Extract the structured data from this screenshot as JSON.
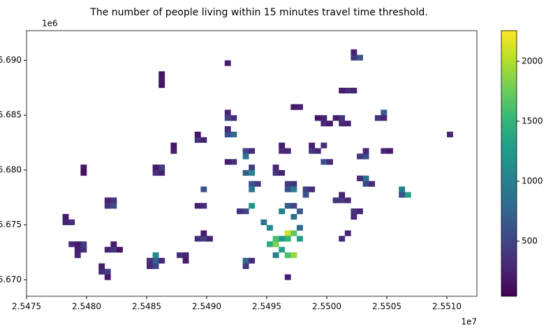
{
  "chart_data": {
    "type": "raster",
    "title": "The number of people living within 15 minutes travel time threshold.",
    "x_offset_label": "1e7",
    "y_offset_label": "1e6",
    "xlim": [
      25475000,
      25512500
    ],
    "ylim": [
      6668500,
      6692700
    ],
    "xticks": [
      {
        "value": 25475000,
        "label": "2.5475"
      },
      {
        "value": 25480000,
        "label": "2.5480"
      },
      {
        "value": 25485000,
        "label": "2.5485"
      },
      {
        "value": 25490000,
        "label": "2.5490"
      },
      {
        "value": 25495000,
        "label": "2.5495"
      },
      {
        "value": 25500000,
        "label": "2.5500"
      },
      {
        "value": 25505000,
        "label": "2.5505"
      },
      {
        "value": 25510000,
        "label": "2.5510"
      }
    ],
    "yticks": [
      {
        "value": 6670000,
        "label": "6.670"
      },
      {
        "value": 6675000,
        "label": "6.675"
      },
      {
        "value": 6680000,
        "label": "6.680"
      },
      {
        "value": 6685000,
        "label": "6.685"
      },
      {
        "value": 6690000,
        "label": "6.690"
      }
    ],
    "clim": [
      40,
      2256
    ],
    "cticks": [
      500,
      1000,
      1500,
      2000
    ],
    "colormap": "viridis",
    "cells": [
      [
        25478000,
        6675000,
        250
      ],
      [
        25478500,
        6675000,
        300
      ],
      [
        25478000,
        6675500,
        200
      ],
      [
        25479000,
        6672500,
        220
      ],
      [
        25479500,
        6672500,
        350
      ],
      [
        25479000,
        6673000,
        180
      ],
      [
        25478500,
        6673000,
        300
      ],
      [
        25479500,
        6673000,
        420
      ],
      [
        25479000,
        6672000,
        260
      ],
      [
        25481000,
        6670500,
        300
      ],
      [
        25481500,
        6670500,
        450
      ],
      [
        25481000,
        6671000,
        220
      ],
      [
        25481500,
        6670000,
        180
      ],
      [
        25481500,
        6672500,
        250
      ],
      [
        25482000,
        6672500,
        380
      ],
      [
        25482000,
        6673000,
        210
      ],
      [
        25482500,
        6672500,
        160
      ],
      [
        25479500,
        6679500,
        150
      ],
      [
        25479500,
        6680000,
        180
      ],
      [
        25481500,
        6676500,
        320
      ],
      [
        25482000,
        6676500,
        560
      ],
      [
        25481500,
        6677000,
        250
      ],
      [
        25482000,
        6677000,
        400
      ],
      [
        25486000,
        6688000,
        200
      ],
      [
        25486000,
        6687500,
        150
      ],
      [
        25486000,
        6688500,
        170
      ],
      [
        25485500,
        6679500,
        350
      ],
      [
        25486000,
        6679500,
        250
      ],
      [
        25485500,
        6680000,
        200
      ],
      [
        25486000,
        6680000,
        420
      ],
      [
        25485500,
        6671500,
        700
      ],
      [
        25485500,
        6672000,
        1100
      ],
      [
        25486000,
        6671500,
        300
      ],
      [
        25485000,
        6671500,
        350
      ],
      [
        25485000,
        6671000,
        280
      ],
      [
        25485500,
        6671000,
        500
      ],
      [
        25488000,
        6672000,
        260
      ],
      [
        25487500,
        6672000,
        330
      ],
      [
        25488000,
        6671500,
        200
      ],
      [
        25487000,
        6681500,
        230
      ],
      [
        25487000,
        6682000,
        190
      ],
      [
        25489000,
        6682500,
        350
      ],
      [
        25489500,
        6682500,
        260
      ],
      [
        25489000,
        6683000,
        180
      ],
      [
        25489500,
        6678000,
        600
      ],
      [
        25489000,
        6676500,
        240
      ],
      [
        25489500,
        6676500,
        320
      ],
      [
        25489000,
        6673500,
        300
      ],
      [
        25489500,
        6673500,
        460
      ],
      [
        25490000,
        6673500,
        250
      ],
      [
        25489500,
        6674000,
        200
      ],
      [
        25491500,
        6689500,
        210
      ],
      [
        25491500,
        6684500,
        480
      ],
      [
        25492000,
        6684500,
        330
      ],
      [
        25491500,
        6685000,
        260
      ],
      [
        25491500,
        6683000,
        560
      ],
      [
        25492000,
        6683000,
        780
      ],
      [
        25491500,
        6683500,
        300
      ],
      [
        25492000,
        6680500,
        350
      ],
      [
        25491500,
        6680500,
        220
      ],
      [
        25493000,
        6681500,
        520
      ],
      [
        25493500,
        6681500,
        300
      ],
      [
        25493000,
        6681000,
        900
      ],
      [
        25493000,
        6679500,
        700
      ],
      [
        25493500,
        6679500,
        1050
      ],
      [
        25493500,
        6680000,
        480
      ],
      [
        25493500,
        6678500,
        600
      ],
      [
        25494000,
        6678500,
        420
      ],
      [
        25493500,
        6678000,
        880
      ],
      [
        25493000,
        6676000,
        500
      ],
      [
        25493500,
        6676500,
        1200
      ],
      [
        25492500,
        6676000,
        350
      ],
      [
        25493000,
        6671500,
        800
      ],
      [
        25493000,
        6671000,
        400
      ],
      [
        25493500,
        6671500,
        300
      ],
      [
        25495500,
        6679500,
        380
      ],
      [
        25496000,
        6679500,
        250
      ],
      [
        25495500,
        6680000,
        300
      ],
      [
        25496000,
        6681500,
        320
      ],
      [
        25496500,
        6681500,
        260
      ],
      [
        25496000,
        6682000,
        210
      ],
      [
        25496500,
        6678500,
        420
      ],
      [
        25497000,
        6678500,
        350
      ],
      [
        25496500,
        6678000,
        600
      ],
      [
        25497000,
        6678000,
        950
      ],
      [
        25497500,
        6685500,
        230
      ],
      [
        25497000,
        6685500,
        170
      ],
      [
        25499500,
        6684000,
        300
      ],
      [
        25500000,
        6684000,
        220
      ],
      [
        25499500,
        6684500,
        260
      ],
      [
        25499000,
        6684500,
        180
      ],
      [
        25498500,
        6681500,
        380
      ],
      [
        25499000,
        6681500,
        290
      ],
      [
        25498500,
        6682000,
        240
      ],
      [
        25499500,
        6682000,
        330
      ],
      [
        25501000,
        6684000,
        280
      ],
      [
        25501000,
        6684500,
        350
      ],
      [
        25500500,
        6684500,
        220
      ],
      [
        25501500,
        6684000,
        250
      ],
      [
        25501500,
        6687000,
        320
      ],
      [
        25502000,
        6687000,
        260
      ],
      [
        25501000,
        6687000,
        210
      ],
      [
        25502000,
        6690000,
        400
      ],
      [
        25502500,
        6690000,
        600
      ],
      [
        25502000,
        6690500,
        250
      ],
      [
        25504500,
        6685000,
        700
      ],
      [
        25504000,
        6684500,
        350
      ],
      [
        25504500,
        6684500,
        280
      ],
      [
        25503000,
        6681000,
        550
      ],
      [
        25503000,
        6681500,
        300
      ],
      [
        25502500,
        6681000,
        400
      ],
      [
        25503000,
        6679000,
        900
      ],
      [
        25503000,
        6678500,
        500
      ],
      [
        25502500,
        6679000,
        350
      ],
      [
        25503500,
        6678500,
        300
      ],
      [
        25504500,
        6681500,
        260
      ],
      [
        25505000,
        6681500,
        200
      ],
      [
        25506000,
        6678000,
        1000
      ],
      [
        25506500,
        6677500,
        1300
      ],
      [
        25506000,
        6677500,
        600
      ],
      [
        25510000,
        6683000,
        280
      ],
      [
        25501000,
        6677000,
        420
      ],
      [
        25501500,
        6677000,
        300
      ],
      [
        25501000,
        6677500,
        250
      ],
      [
        25500500,
        6677000,
        360
      ],
      [
        25502000,
        6676000,
        380
      ],
      [
        25502500,
        6676000,
        260
      ],
      [
        25502000,
        6675500,
        300
      ],
      [
        25499500,
        6680500,
        550
      ],
      [
        25500000,
        6680500,
        300
      ],
      [
        25498000,
        6678000,
        450
      ],
      [
        25498500,
        6678000,
        320
      ],
      [
        25498000,
        6677500,
        600
      ],
      [
        25495000,
        6673000,
        1400
      ],
      [
        25495500,
        6673000,
        1800
      ],
      [
        25495500,
        6673500,
        1600
      ],
      [
        25496000,
        6673500,
        1200
      ],
      [
        25496500,
        6674000,
        2100
      ],
      [
        25497000,
        6674000,
        1700
      ],
      [
        25496500,
        6673500,
        1500
      ],
      [
        25496000,
        6672500,
        1300
      ],
      [
        25496500,
        6672000,
        1600
      ],
      [
        25497000,
        6672000,
        1900
      ],
      [
        25495000,
        6674500,
        1100
      ],
      [
        25494500,
        6675000,
        900
      ],
      [
        25495500,
        6672000,
        1000
      ],
      [
        25497500,
        6673500,
        1250
      ],
      [
        25497500,
        6674500,
        800
      ],
      [
        25496500,
        6676500,
        700
      ],
      [
        25497000,
        6676500,
        500
      ],
      [
        25496000,
        6676000,
        1000
      ],
      [
        25497000,
        6675500,
        850
      ],
      [
        25497500,
        6676000,
        650
      ],
      [
        25496500,
        6670000,
        220
      ],
      [
        25501000,
        6673500,
        300
      ],
      [
        25501500,
        6674000,
        260
      ]
    ]
  }
}
